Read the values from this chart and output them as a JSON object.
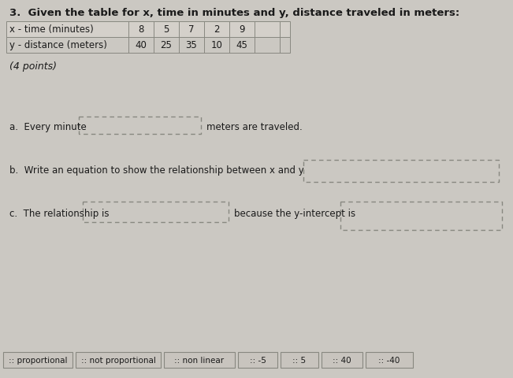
{
  "title": "3.  Given the table for x, time in minutes and y, distance traveled in meters:",
  "table": {
    "row1_label": "x - time (minutes)",
    "row1_values": [
      "8",
      "5",
      "7",
      "2",
      "9"
    ],
    "row2_label": "y - distance (meters)",
    "row2_values": [
      "40",
      "25",
      "35",
      "10",
      "45"
    ]
  },
  "points_label": "(4 points)",
  "part_a_prefix": "a.  Every minute",
  "part_a_suffix": "meters are traveled.",
  "part_b": "b.  Write an equation to show the relationship between x and y",
  "part_c_prefix": "c.  The relationship is",
  "part_c_middle": "because the y-intercept is",
  "answer_bank": [
    ":: proportional",
    ":: not proportional",
    ":: non linear",
    ":: -5",
    ":: 5",
    ":: 40",
    ":: -40"
  ],
  "bg_color": "#cbc8c2",
  "text_color": "#1a1a1a",
  "box_fill": "#cbc8c2",
  "box_edge": "#888880",
  "table_line_color": "#888880",
  "table_fill1": "#d4d0ca",
  "table_fill2": "#cbc8c2",
  "answer_box_fill": "#c8c4be",
  "answer_box_edge": "#888880"
}
